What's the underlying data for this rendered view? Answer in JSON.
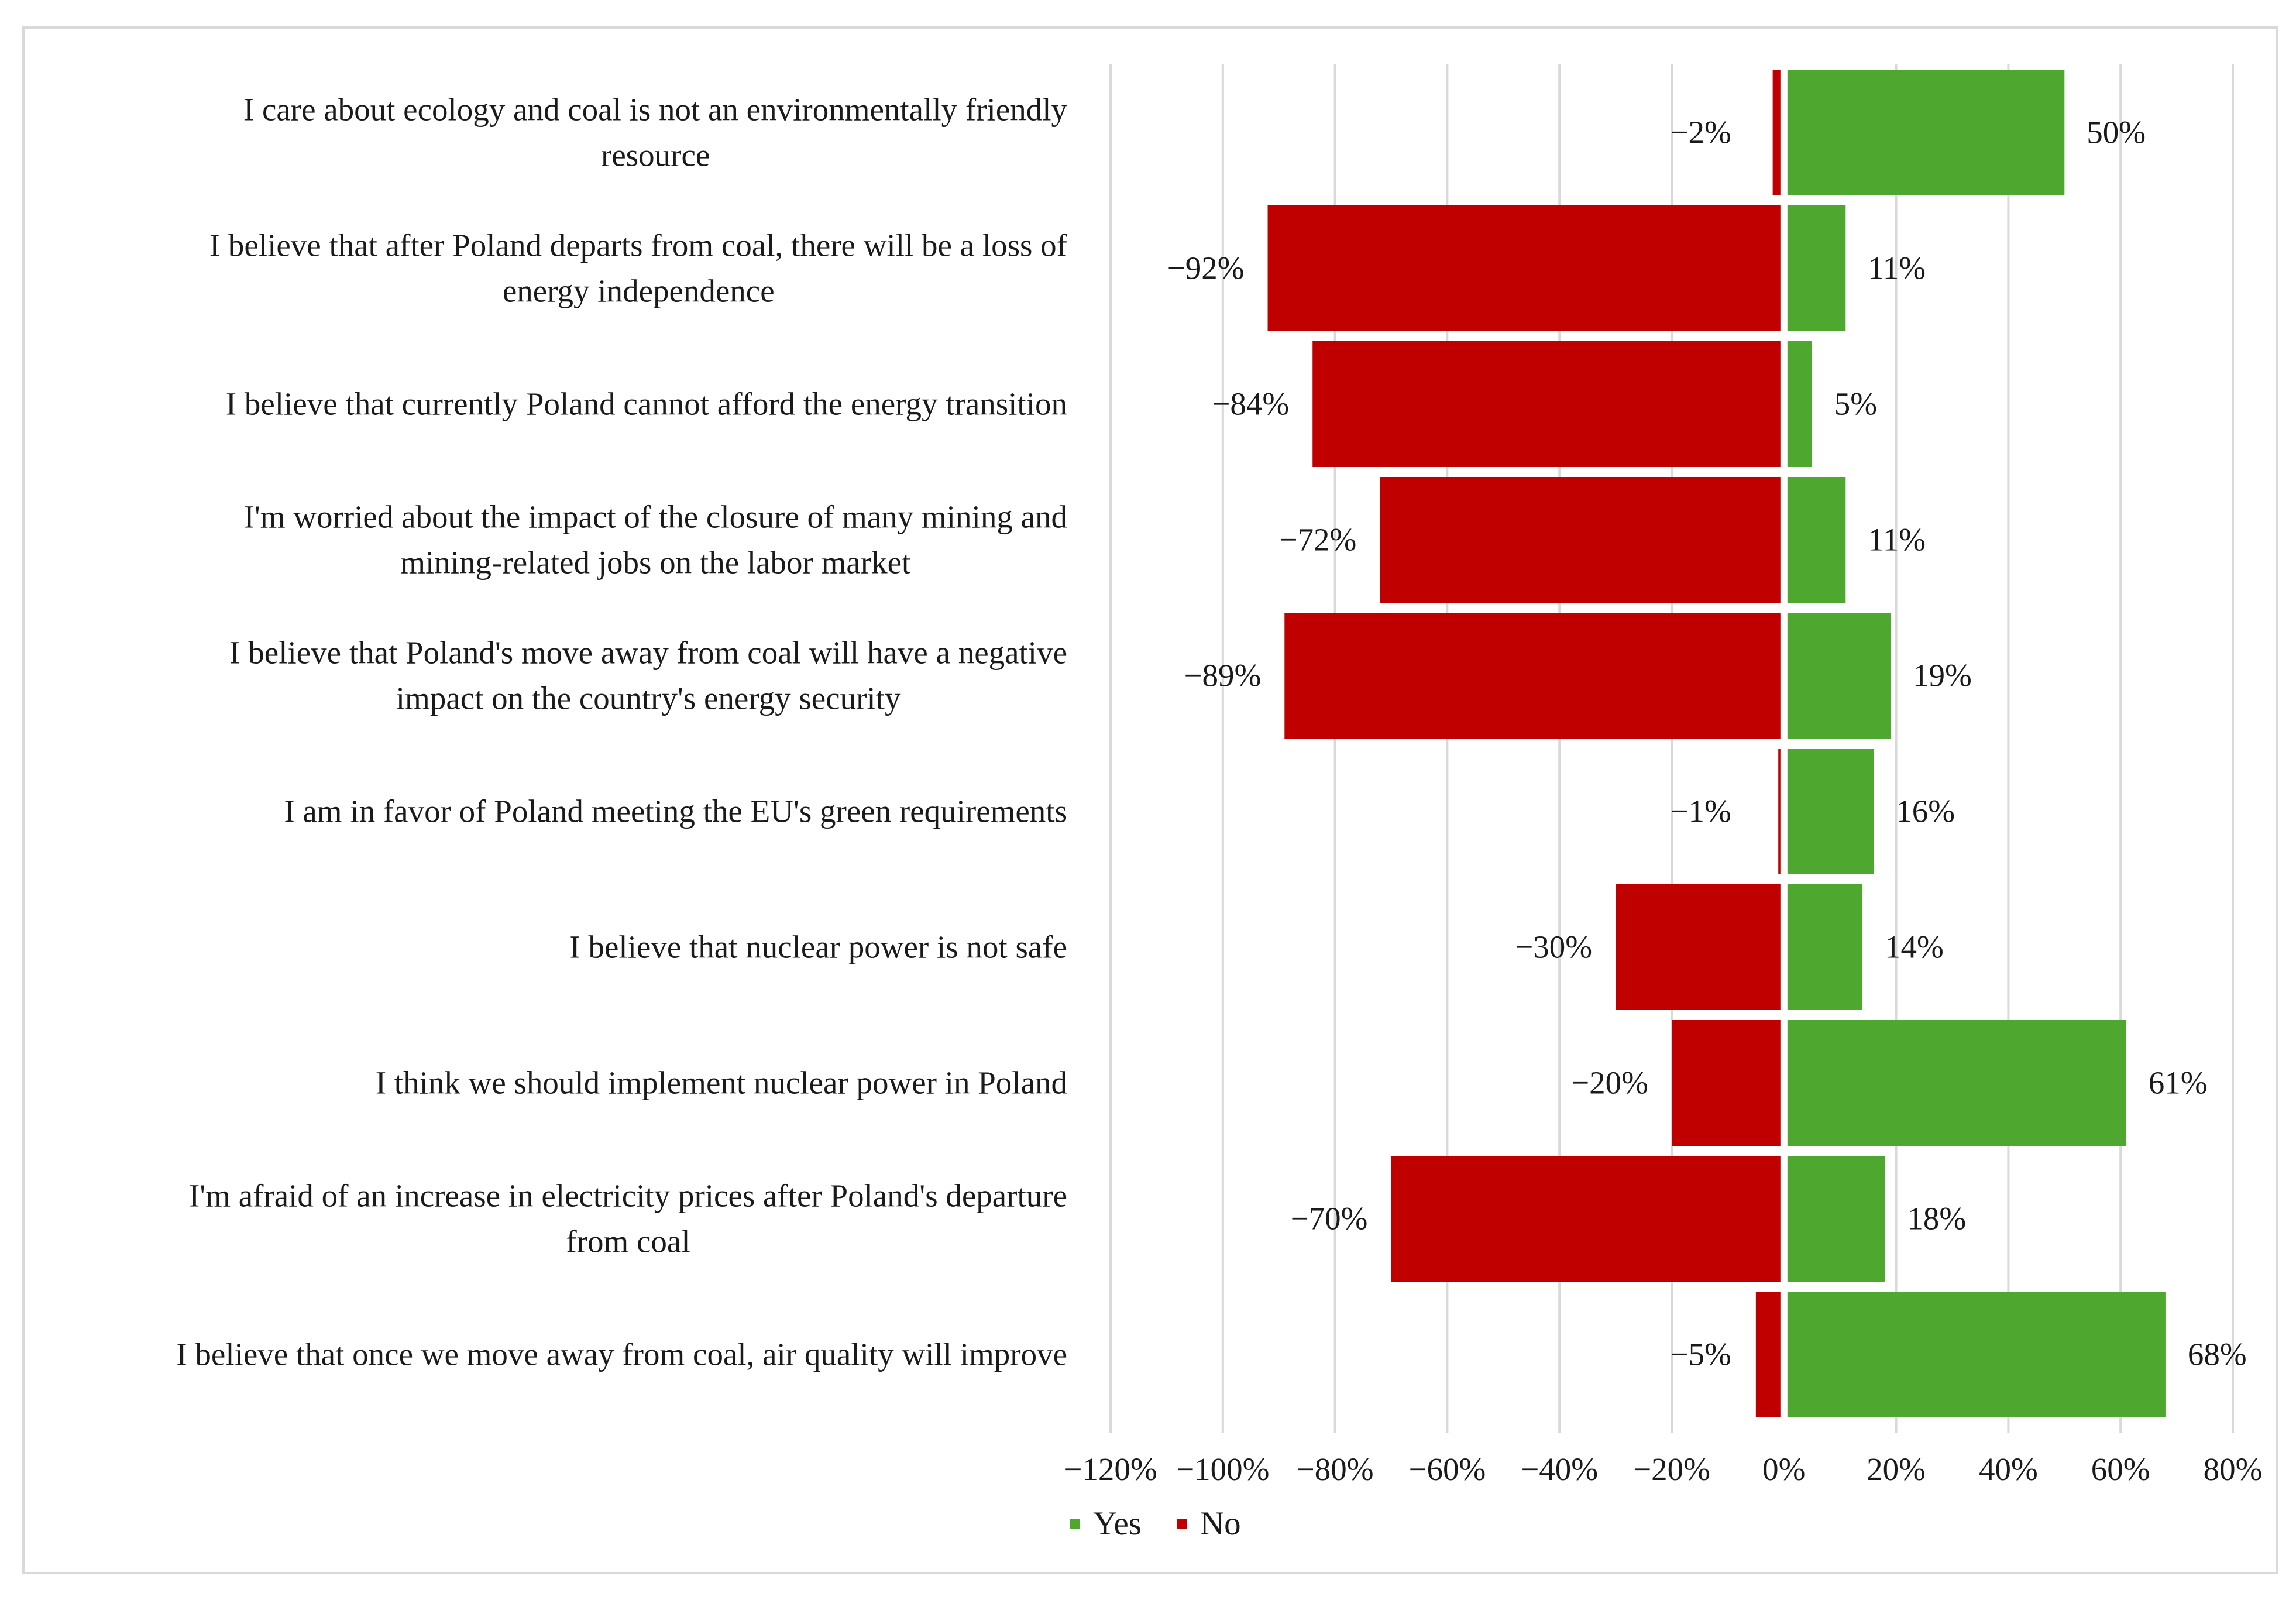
{
  "chart_data": {
    "type": "bar",
    "orientation": "horizontal-diverging",
    "categories": [
      [
        "I care about ecology and coal is not an environmentally friendly",
        "resource"
      ],
      [
        "I believe that after Poland departs from coal, there will be a loss of",
        "energy independence"
      ],
      [
        "I believe that currently Poland cannot afford the energy transition"
      ],
      [
        "I'm worried about the impact of the closure of many mining and",
        "mining-related jobs on the labor market"
      ],
      [
        "I believe that Poland's move away from coal will have a negative",
        "impact on the country's energy security"
      ],
      [
        "I am in favor of Poland meeting the EU's green requirements"
      ],
      [
        "I believe that nuclear power is not safe"
      ],
      [
        "I think we should implement nuclear power in Poland"
      ],
      [
        "I'm afraid of an increase in electricity prices after Poland's departure",
        "from coal"
      ],
      [
        "I believe that once we move away from coal, air quality will improve"
      ]
    ],
    "series": [
      {
        "name": "Yes",
        "color": "#4ea72e",
        "values": [
          50,
          11,
          5,
          11,
          19,
          16,
          14,
          61,
          18,
          68
        ],
        "labels": [
          "50%",
          "11%",
          "5%",
          "11%",
          "19%",
          "16%",
          "14%",
          "61%",
          "18%",
          "68%"
        ]
      },
      {
        "name": "No",
        "color": "#c00000",
        "values": [
          -2,
          -92,
          -84,
          -72,
          -89,
          -1,
          -30,
          -20,
          -70,
          -5
        ],
        "labels": [
          "−2%",
          "−92%",
          "−84%",
          "−72%",
          "−89%",
          "−1%",
          "−30%",
          "−20%",
          "−70%",
          "−5%"
        ]
      }
    ],
    "xlim": [
      -120,
      80
    ],
    "xticks": [
      -120,
      -100,
      -80,
      -60,
      -40,
      -20,
      0,
      20,
      40,
      60,
      80
    ],
    "xtick_labels": [
      "−120%",
      "−100%",
      "−80%",
      "−60%",
      "−40%",
      "−20%",
      "0%",
      "20%",
      "40%",
      "60%",
      "80%"
    ],
    "grid": true,
    "legend": {
      "position": "bottom-center",
      "entries": [
        "Yes",
        "No"
      ]
    },
    "title": "",
    "xlabel": "",
    "ylabel": ""
  }
}
